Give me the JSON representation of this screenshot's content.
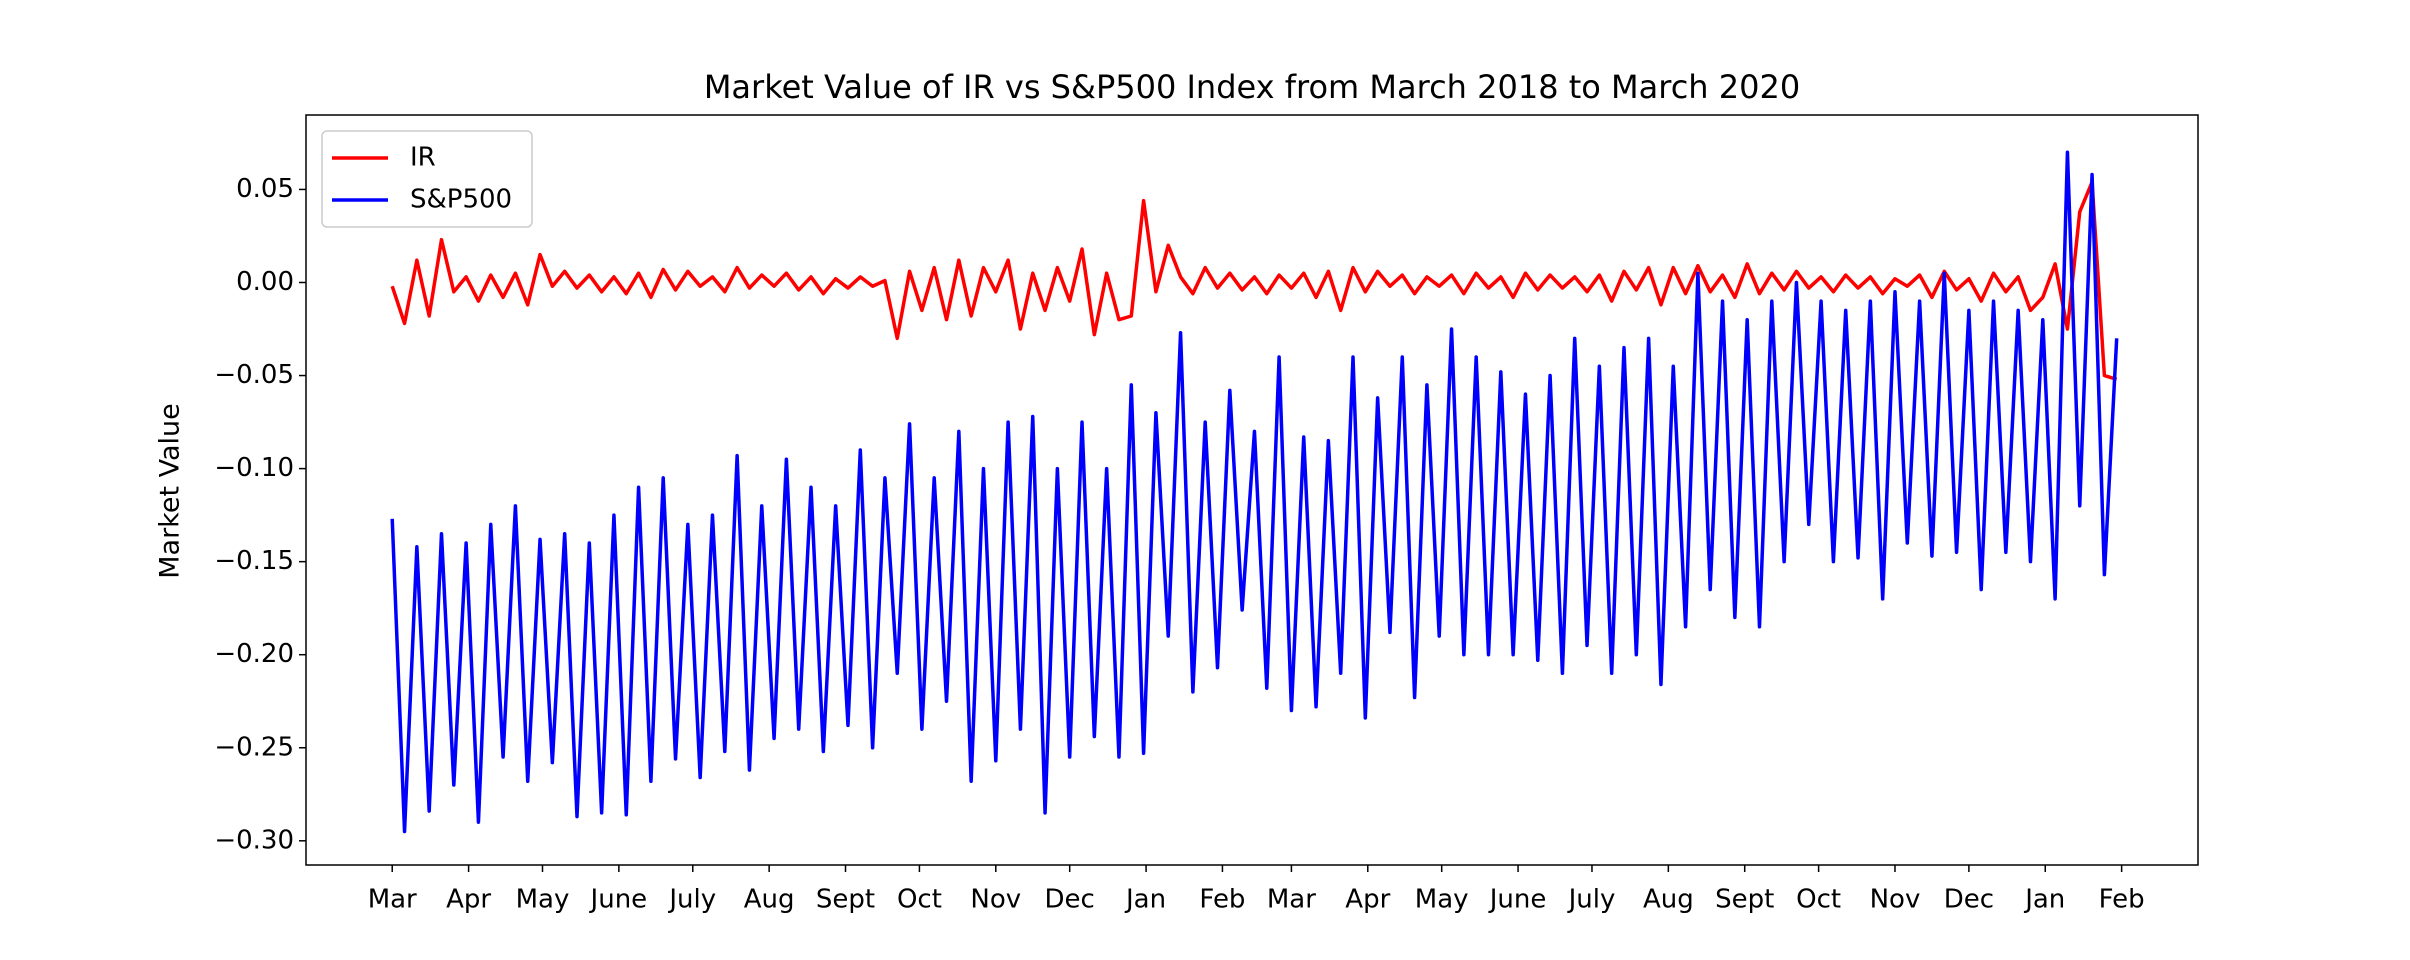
{
  "chart_data": {
    "type": "line",
    "title": "Market Value of IR vs S&P500 Index from March 2018 to March 2020",
    "y_label": "Market Value",
    "legend": "upper left",
    "grid": false,
    "xlim": [
      -35,
      733
    ],
    "ylim": [
      -0.313,
      0.09
    ],
    "xticks": [
      {
        "value": 0,
        "label": "Mar"
      },
      {
        "value": 31,
        "label": "Apr"
      },
      {
        "value": 61,
        "label": "May"
      },
      {
        "value": 92,
        "label": "June"
      },
      {
        "value": 122,
        "label": "July"
      },
      {
        "value": 153,
        "label": "Aug"
      },
      {
        "value": 184,
        "label": "Sept"
      },
      {
        "value": 214,
        "label": "Oct"
      },
      {
        "value": 245,
        "label": "Nov"
      },
      {
        "value": 275,
        "label": "Dec"
      },
      {
        "value": 306,
        "label": "Jan"
      },
      {
        "value": 337,
        "label": "Feb"
      },
      {
        "value": 365,
        "label": "Mar"
      },
      {
        "value": 396,
        "label": "Apr"
      },
      {
        "value": 426,
        "label": "May"
      },
      {
        "value": 457,
        "label": "June"
      },
      {
        "value": 487,
        "label": "July"
      },
      {
        "value": 518,
        "label": "Aug"
      },
      {
        "value": 549,
        "label": "Sept"
      },
      {
        "value": 579,
        "label": "Oct"
      },
      {
        "value": 610,
        "label": "Nov"
      },
      {
        "value": 640,
        "label": "Dec"
      },
      {
        "value": 671,
        "label": "Jan"
      },
      {
        "value": 702,
        "label": "Feb"
      }
    ],
    "yticks": [
      {
        "value": 0.05,
        "label": "0.05"
      },
      {
        "value": 0,
        "label": "0.00"
      },
      {
        "value": -0.05,
        "label": "−0.05"
      },
      {
        "value": -0.1,
        "label": "−0.10"
      },
      {
        "value": -0.15,
        "label": "−0.15"
      },
      {
        "value": -0.2,
        "label": "−0.20"
      },
      {
        "value": -0.25,
        "label": "−0.25"
      },
      {
        "value": -0.3,
        "label": "−0.30"
      }
    ],
    "x": [
      0,
      5,
      10,
      15,
      20,
      25,
      30,
      35,
      40,
      45,
      50,
      55,
      60,
      65,
      70,
      75,
      80,
      85,
      90,
      95,
      100,
      105,
      110,
      115,
      120,
      125,
      130,
      135,
      140,
      145,
      150,
      155,
      160,
      165,
      170,
      175,
      180,
      185,
      190,
      195,
      200,
      205,
      210,
      215,
      220,
      225,
      230,
      235,
      240,
      245,
      250,
      255,
      260,
      265,
      270,
      275,
      280,
      285,
      290,
      295,
      300,
      305,
      310,
      315,
      320,
      325,
      330,
      335,
      340,
      345,
      350,
      355,
      360,
      365,
      370,
      375,
      380,
      385,
      390,
      395,
      400,
      405,
      410,
      415,
      420,
      425,
      430,
      435,
      440,
      445,
      450,
      455,
      460,
      465,
      470,
      475,
      480,
      485,
      490,
      495,
      500,
      505,
      510,
      515,
      520,
      525,
      530,
      535,
      540,
      545,
      550,
      555,
      560,
      565,
      570,
      575,
      580,
      585,
      590,
      595,
      600,
      605,
      610,
      615,
      620,
      625,
      630,
      635,
      640,
      645,
      650,
      655,
      660,
      665,
      670,
      675,
      680,
      685,
      690,
      695,
      700
    ],
    "series": [
      {
        "name": "IR",
        "color": "#ff0000",
        "values": [
          -0.002,
          -0.022,
          0.012,
          -0.018,
          0.023,
          -0.005,
          0.003,
          -0.01,
          0.004,
          -0.008,
          0.005,
          -0.012,
          0.015,
          -0.002,
          0.006,
          -0.003,
          0.004,
          -0.005,
          0.003,
          -0.006,
          0.005,
          -0.008,
          0.007,
          -0.004,
          0.006,
          -0.002,
          0.003,
          -0.005,
          0.008,
          -0.003,
          0.004,
          -0.002,
          0.005,
          -0.004,
          0.003,
          -0.006,
          0.002,
          -0.003,
          0.003,
          -0.002,
          0.001,
          -0.03,
          0.006,
          -0.015,
          0.008,
          -0.02,
          0.012,
          -0.018,
          0.008,
          -0.005,
          0.012,
          -0.025,
          0.005,
          -0.015,
          0.008,
          -0.01,
          0.018,
          -0.028,
          0.005,
          -0.02,
          -0.018,
          0.044,
          -0.005,
          0.02,
          0.003,
          -0.006,
          0.008,
          -0.003,
          0.005,
          -0.004,
          0.003,
          -0.006,
          0.004,
          -0.003,
          0.005,
          -0.008,
          0.006,
          -0.015,
          0.008,
          -0.005,
          0.006,
          -0.002,
          0.004,
          -0.006,
          0.003,
          -0.002,
          0.004,
          -0.006,
          0.005,
          -0.003,
          0.003,
          -0.008,
          0.005,
          -0.004,
          0.004,
          -0.003,
          0.003,
          -0.005,
          0.004,
          -0.01,
          0.006,
          -0.004,
          0.008,
          -0.012,
          0.008,
          -0.006,
          0.009,
          -0.005,
          0.004,
          -0.008,
          0.01,
          -0.006,
          0.005,
          -0.004,
          0.006,
          -0.003,
          0.003,
          -0.005,
          0.004,
          -0.003,
          0.003,
          -0.006,
          0.002,
          -0.002,
          0.004,
          -0.008,
          0.006,
          -0.004,
          0.002,
          -0.01,
          0.005,
          -0.005,
          0.003,
          -0.015,
          -0.008,
          0.01,
          -0.025,
          0.038,
          0.054,
          -0.05,
          -0.052
        ]
      },
      {
        "name": "S&P500",
        "color": "#0000ff",
        "values": [
          -0.127,
          -0.295,
          -0.142,
          -0.284,
          -0.135,
          -0.27,
          -0.14,
          -0.29,
          -0.13,
          -0.255,
          -0.12,
          -0.268,
          -0.138,
          -0.258,
          -0.135,
          -0.287,
          -0.14,
          -0.285,
          -0.125,
          -0.286,
          -0.11,
          -0.268,
          -0.105,
          -0.256,
          -0.13,
          -0.266,
          -0.125,
          -0.252,
          -0.093,
          -0.262,
          -0.12,
          -0.245,
          -0.095,
          -0.24,
          -0.11,
          -0.252,
          -0.12,
          -0.238,
          -0.09,
          -0.25,
          -0.105,
          -0.21,
          -0.076,
          -0.24,
          -0.105,
          -0.225,
          -0.08,
          -0.268,
          -0.1,
          -0.257,
          -0.075,
          -0.24,
          -0.072,
          -0.285,
          -0.1,
          -0.255,
          -0.075,
          -0.244,
          -0.1,
          -0.255,
          -0.055,
          -0.253,
          -0.07,
          -0.19,
          -0.027,
          -0.22,
          -0.075,
          -0.207,
          -0.058,
          -0.176,
          -0.08,
          -0.218,
          -0.04,
          -0.23,
          -0.083,
          -0.228,
          -0.085,
          -0.21,
          -0.04,
          -0.234,
          -0.062,
          -0.188,
          -0.04,
          -0.223,
          -0.055,
          -0.19,
          -0.025,
          -0.2,
          -0.04,
          -0.2,
          -0.048,
          -0.2,
          -0.06,
          -0.203,
          -0.05,
          -0.21,
          -0.03,
          -0.195,
          -0.045,
          -0.21,
          -0.035,
          -0.2,
          -0.03,
          -0.216,
          -0.045,
          -0.185,
          0.005,
          -0.165,
          -0.01,
          -0.18,
          -0.02,
          -0.185,
          -0.01,
          -0.15,
          0.0,
          -0.13,
          -0.01,
          -0.15,
          -0.015,
          -0.148,
          -0.01,
          -0.17,
          -0.005,
          -0.14,
          -0.01,
          -0.147,
          0.005,
          -0.145,
          -0.015,
          -0.165,
          -0.01,
          -0.145,
          -0.015,
          -0.15,
          -0.02,
          -0.17,
          0.07,
          -0.12,
          0.058,
          -0.157,
          -0.03
        ]
      }
    ]
  }
}
